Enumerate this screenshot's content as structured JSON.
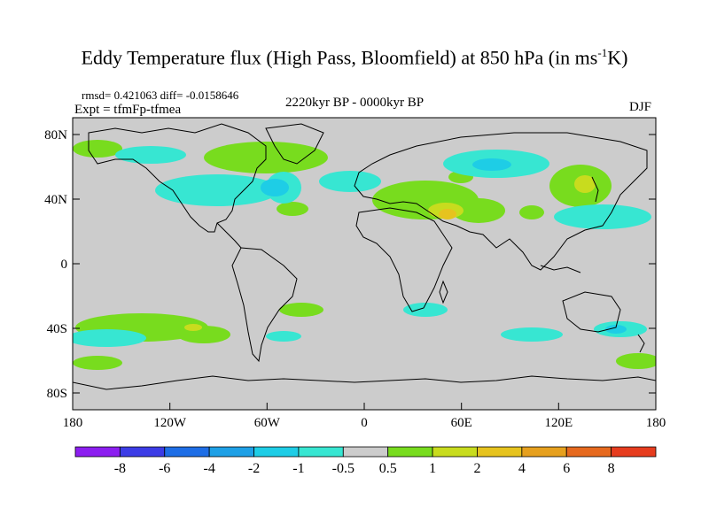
{
  "title": {
    "main": "Eddy Temperature flux (High Pass, Bloomfield) at 850 hPa (in ms",
    "sup": "-1",
    "tail": "K)"
  },
  "stats": "rmsd= 0.421063 diff= -0.0158646",
  "experiment": "Expt = tfmFp-tfmea",
  "period": "2220kyr BP - 0000kyr BP",
  "season": "DJF",
  "map": {
    "lat_labels": [
      "80N",
      "40N",
      "0",
      "40S",
      "80S"
    ],
    "lon_labels": [
      "180",
      "120W",
      "60W",
      "0",
      "60E",
      "120E",
      "180"
    ],
    "background_color": "#cccccc",
    "coast_color": "#000000"
  },
  "colorbar": {
    "labels": [
      "-8",
      "-6",
      "-4",
      "-2",
      "-1",
      "-0.5",
      "0.5",
      "1",
      "2",
      "4",
      "6",
      "8"
    ],
    "colors": [
      "#8c1ef0",
      "#3c3ce6",
      "#1e6ee6",
      "#1ea0e6",
      "#1ecde6",
      "#37e6d2",
      "#cccccc",
      "#78dc1e",
      "#c8dc1e",
      "#e6c31e",
      "#e6a01e",
      "#e6691e",
      "#e63c1e"
    ]
  }
}
